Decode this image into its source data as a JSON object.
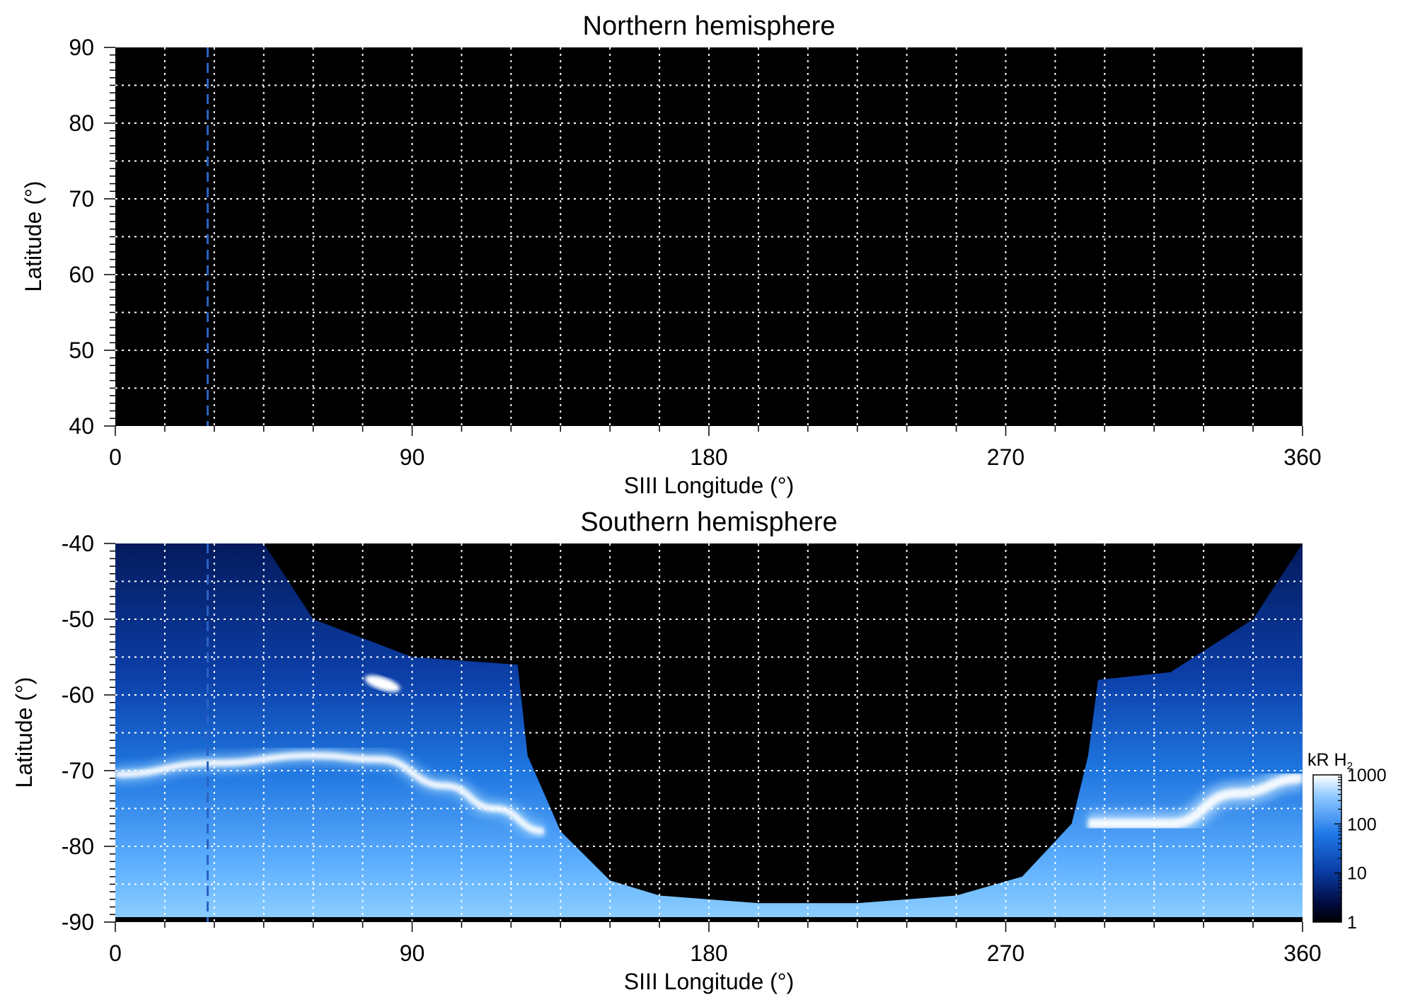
{
  "chart_data": [
    {
      "type": "heatmap",
      "title": "Northern hemisphere",
      "xlabel": "SIII Longitude (°)",
      "ylabel": "Latitude (°)",
      "xlim": [
        0,
        360
      ],
      "ylim": [
        40,
        90
      ],
      "x_ticks": [
        "0",
        "90",
        "180",
        "270",
        "360"
      ],
      "y_ticks": [
        "90",
        "80",
        "70",
        "60",
        "50",
        "40"
      ],
      "grid": true,
      "grid_style": "white dotted, every 15° longitude and 5° latitude",
      "background_color": "#000000",
      "emission": "none detected",
      "marker_line": {
        "longitude": 28,
        "style": "dashed",
        "color": "#2a62c4"
      }
    },
    {
      "type": "heatmap",
      "title": "Southern hemisphere",
      "xlabel": "SIII Longitude (°)",
      "ylabel": "Latitude (°)",
      "xlim": [
        0,
        360
      ],
      "ylim": [
        -90,
        -40
      ],
      "x_ticks": [
        "0",
        "90",
        "180",
        "270",
        "360"
      ],
      "y_ticks": [
        "-40",
        "-50",
        "-60",
        "-70",
        "-80",
        "-90"
      ],
      "grid": true,
      "grid_style": "white dotted, every 15° longitude and 5° latitude",
      "background_color": "#000000",
      "marker_line": {
        "longitude": 28,
        "style": "dashed",
        "color": "#2a62c4"
      },
      "colorbar": {
        "label": "kR H",
        "label_subscript": "2",
        "scale": "log",
        "range": [
          1,
          1000
        ],
        "ticks": [
          "1000",
          "100",
          "10",
          "1"
        ],
        "colors": [
          "#000000",
          "#000a3c",
          "#0a3ea6",
          "#1e78e8",
          "#8cc8ff",
          "#ffffff"
        ]
      },
      "coverage_edge": [
        {
          "lon": 0,
          "lat": -40
        },
        {
          "lon": 45,
          "lat": -40
        },
        {
          "lon": 60,
          "lat": -50
        },
        {
          "lon": 90,
          "lat": -55
        },
        {
          "lon": 122,
          "lat": -56
        },
        {
          "lon": 125,
          "lat": -68
        },
        {
          "lon": 135,
          "lat": -78
        },
        {
          "lon": 150,
          "lat": -84.5
        },
        {
          "lon": 165,
          "lat": -86.5
        },
        {
          "lon": 195,
          "lat": -87.5
        },
        {
          "lon": 225,
          "lat": -87.5
        },
        {
          "lon": 255,
          "lat": -86.5
        },
        {
          "lon": 275,
          "lat": -84
        },
        {
          "lon": 290,
          "lat": -77
        },
        {
          "lon": 295,
          "lat": -68
        },
        {
          "lon": 298,
          "lat": -58
        },
        {
          "lon": 320,
          "lat": -57
        },
        {
          "lon": 345,
          "lat": -50
        },
        {
          "lon": 360,
          "lat": -40
        }
      ],
      "main_oval": [
        {
          "lon": 0,
          "lat": -70.5
        },
        {
          "lon": 30,
          "lat": -69
        },
        {
          "lon": 60,
          "lat": -68
        },
        {
          "lon": 80,
          "lat": -68.5
        },
        {
          "lon": 100,
          "lat": -72
        },
        {
          "lon": 115,
          "lat": -75
        },
        {
          "lon": 130,
          "lat": -78
        }
      ],
      "main_oval_east": [
        {
          "lon": 295,
          "lat": -77
        },
        {
          "lon": 320,
          "lat": -77
        },
        {
          "lon": 340,
          "lat": -73
        },
        {
          "lon": 360,
          "lat": -71
        }
      ],
      "bright_spot": {
        "lon": 81,
        "lat": -58.5,
        "intensity_kR": 1000
      }
    }
  ]
}
